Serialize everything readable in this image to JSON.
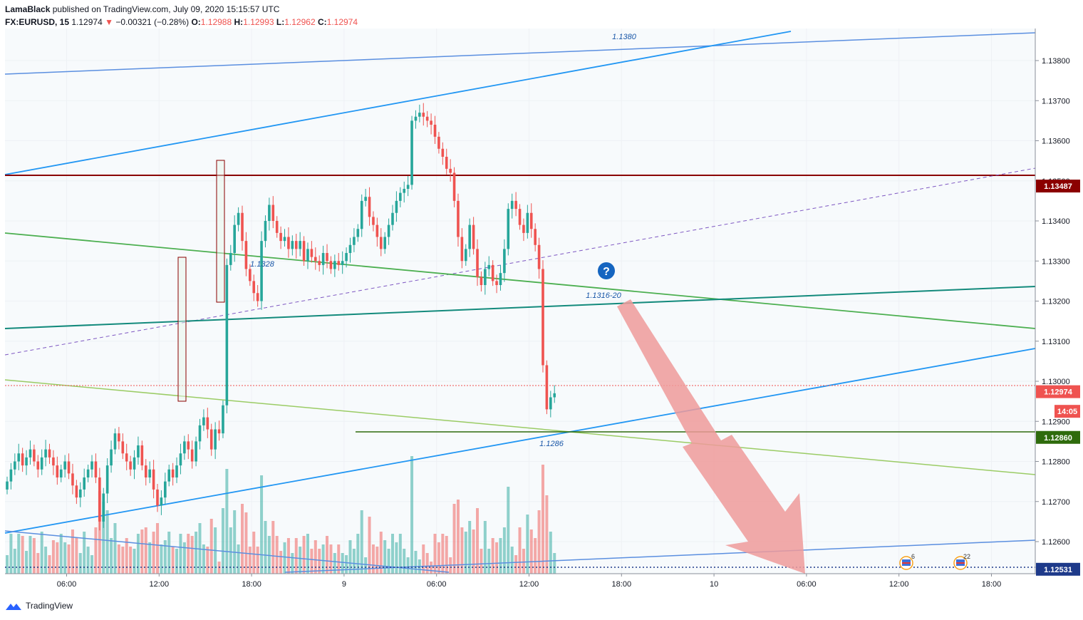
{
  "header": {
    "author": "LamaBlack",
    "published": "published on TradingView.com, July 09, 2020 15:15:57 UTC",
    "symbol": "FX:EURUSD, 15",
    "last": "1.12974",
    "change": "−0.00321 (−0.28%)",
    "o_label": "O:",
    "o": "1.12988",
    "h_label": "H:",
    "h": "1.12993",
    "l_label": "L:",
    "l": "1.12962",
    "c_label": "C:",
    "c": "1.12974"
  },
  "footer": {
    "brand": "TradingView"
  },
  "colors": {
    "up": "#26a69a",
    "down": "#ef5350",
    "accent": "#1e88e5",
    "bg": "#f7fafc"
  },
  "chart_data": {
    "type": "candlestick",
    "ylim": [
      1.1252,
      1.1388
    ],
    "y_ticks": [
      "1.13800",
      "1.13700",
      "1.13600",
      "1.13500",
      "1.13400",
      "1.13300",
      "1.13200",
      "1.13100",
      "1.13000",
      "1.12900",
      "1.12800",
      "1.12700",
      "1.12600"
    ],
    "x_ticks": [
      "06:00",
      "12:00",
      "18:00",
      "9",
      "06:00",
      "12:00",
      "18:00",
      "10",
      "06:00",
      "12:00",
      "18:00"
    ],
    "price_labels": [
      {
        "text": "1.13487",
        "value": 1.13487,
        "color": "#8b0000"
      },
      {
        "text": "1.12974",
        "value": 1.12974,
        "color": "#ef5350"
      },
      {
        "text": "14:05",
        "value": 1.12925,
        "color": "#ef5350"
      },
      {
        "text": "1.12860",
        "value": 1.1286,
        "color": "#2e6b0c"
      },
      {
        "text": "1.12531",
        "value": 1.12531,
        "color": "#1e3a8a"
      }
    ],
    "annotations": [
      "1.1380",
      "1.1328",
      "1.1316-20",
      "1.1286"
    ],
    "event_badges": [
      "6",
      "22"
    ],
    "close": [
      1.1275,
      1.1278,
      1.128,
      1.1282,
      1.1279,
      1.1281,
      1.1283,
      1.128,
      1.1278,
      1.1281,
      1.1283,
      1.1281,
      1.1279,
      1.1276,
      1.1278,
      1.128,
      1.1277,
      1.1274,
      1.1271,
      1.1273,
      1.1276,
      1.1278,
      1.128,
      1.1276,
      1.1265,
      1.1272,
      1.1279,
      1.1283,
      1.1287,
      1.1285,
      1.1282,
      1.128,
      1.1278,
      1.1281,
      1.1284,
      1.1279,
      1.1276,
      1.1278,
      1.1273,
      1.1269,
      1.1271,
      1.1275,
      1.1278,
      1.1276,
      1.1279,
      1.1282,
      1.1285,
      1.1283,
      1.128,
      1.1285,
      1.1289,
      1.1291,
      1.1288,
      1.1283,
      1.1288,
      1.1287,
      1.1294,
      1.1329,
      1.1332,
      1.1339,
      1.1342,
      1.1335,
      1.1328,
      1.1325,
      1.1322,
      1.132,
      1.1335,
      1.134,
      1.1344,
      1.134,
      1.1337,
      1.1335,
      1.1336,
      1.1333,
      1.1335,
      1.1333,
      1.1335,
      1.133,
      1.1333,
      1.1331,
      1.133,
      1.1329,
      1.1332,
      1.133,
      1.1328,
      1.133,
      1.1329,
      1.133,
      1.1332,
      1.1334,
      1.1336,
      1.1338,
      1.1345,
      1.1346,
      1.1341,
      1.1339,
      1.1336,
      1.1333,
      1.1336,
      1.1339,
      1.1342,
      1.1345,
      1.1347,
      1.1348,
      1.1349,
      1.1365,
      1.1366,
      1.1367,
      1.1366,
      1.1365,
      1.1364,
      1.1361,
      1.1358,
      1.1356,
      1.1353,
      1.1352,
      1.1345,
      1.1336,
      1.133,
      1.1333,
      1.1339,
      1.1333,
      1.1326,
      1.1324,
      1.1328,
      1.1329,
      1.1325,
      1.1324,
      1.1327,
      1.1333,
      1.1343,
      1.1345,
      1.1343,
      1.1339,
      1.1337,
      1.1342,
      1.1338,
      1.1334,
      1.1328,
      1.1304,
      1.1293,
      1.1296,
      1.1297
    ]
  }
}
